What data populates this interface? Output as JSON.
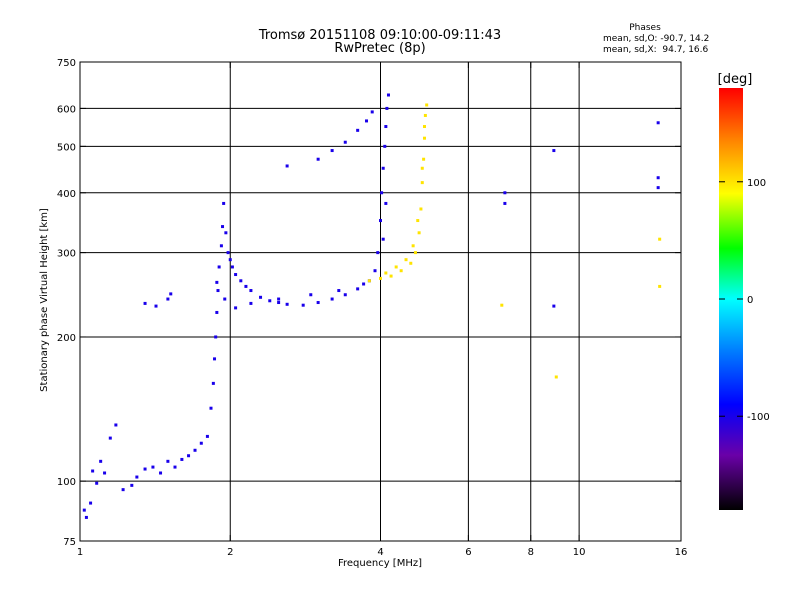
{
  "header": {
    "title_line1": "Tromsø 20151108 09:10:00-09:11:43",
    "title_line2": "RwPretec (8p)"
  },
  "stats": {
    "heading": "Phases",
    "line_o": "mean, sd,O: -90.7, 14.2",
    "line_x": "mean, sd,X:  94.7, 16.6"
  },
  "colorbar": {
    "unit_label": "[deg]",
    "ticks": [
      {
        "value": 100,
        "label": "100"
      },
      {
        "value": 0,
        "label": "0"
      },
      {
        "value": -100,
        "label": "-100"
      }
    ],
    "range": [
      -180,
      180
    ]
  },
  "chart_data": {
    "type": "scatter",
    "xlabel": "Frequency [MHz]",
    "ylabel": "Stationary phase Virtual Height [km]",
    "xscale": "log",
    "yscale": "log",
    "xlim": [
      1,
      16
    ],
    "ylim": [
      75,
      750
    ],
    "xticks": [
      {
        "value": 1,
        "label": "1"
      },
      {
        "value": 2,
        "label": "2"
      },
      {
        "value": 4,
        "label": "4"
      },
      {
        "value": 6,
        "label": "6"
      },
      {
        "value": 8,
        "label": "8"
      },
      {
        "value": 10,
        "label": "10"
      },
      {
        "value": 16,
        "label": "16"
      }
    ],
    "yticks": [
      {
        "value": 75,
        "label": "75"
      },
      {
        "value": 100,
        "label": "100"
      },
      {
        "value": 200,
        "label": "200"
      },
      {
        "value": 300,
        "label": "300"
      },
      {
        "value": 400,
        "label": "400"
      },
      {
        "value": 500,
        "label": "500"
      },
      {
        "value": 600,
        "label": "600"
      },
      {
        "value": 750,
        "label": "750"
      }
    ],
    "xgrid": [
      2,
      4,
      6,
      8,
      10
    ],
    "ygrid": [
      100,
      200,
      300,
      400,
      500,
      600
    ],
    "series": [
      {
        "mode": "O",
        "phase_deg": -100,
        "points": [
          [
            1.02,
            87
          ],
          [
            1.03,
            84
          ],
          [
            1.05,
            90
          ],
          [
            1.06,
            105
          ],
          [
            1.08,
            99
          ],
          [
            1.1,
            110
          ],
          [
            1.12,
            104
          ],
          [
            1.15,
            123
          ],
          [
            1.18,
            131
          ],
          [
            1.22,
            96
          ],
          [
            1.27,
            98
          ],
          [
            1.3,
            102
          ],
          [
            1.35,
            106
          ],
          [
            1.4,
            107
          ],
          [
            1.45,
            104
          ],
          [
            1.5,
            110
          ],
          [
            1.55,
            107
          ],
          [
            1.6,
            111
          ],
          [
            1.65,
            113
          ],
          [
            1.7,
            116
          ],
          [
            1.75,
            120
          ],
          [
            1.8,
            124
          ],
          [
            1.83,
            142
          ],
          [
            1.85,
            160
          ],
          [
            1.86,
            180
          ],
          [
            1.87,
            200
          ],
          [
            1.88,
            225
          ],
          [
            1.89,
            250
          ],
          [
            1.9,
            280
          ],
          [
            1.92,
            310
          ],
          [
            1.93,
            340
          ],
          [
            1.94,
            380
          ],
          [
            1.96,
            330
          ],
          [
            1.98,
            300
          ],
          [
            2.0,
            290
          ],
          [
            2.02,
            280
          ],
          [
            2.05,
            270
          ],
          [
            2.1,
            262
          ],
          [
            2.15,
            255
          ],
          [
            2.2,
            250
          ],
          [
            2.3,
            242
          ],
          [
            2.4,
            238
          ],
          [
            2.5,
            236
          ],
          [
            2.6,
            234
          ],
          [
            2.8,
            233
          ],
          [
            3.0,
            236
          ],
          [
            3.2,
            240
          ],
          [
            3.4,
            245
          ],
          [
            3.6,
            252
          ],
          [
            3.8,
            262
          ],
          [
            3.9,
            275
          ],
          [
            3.95,
            300
          ],
          [
            4.0,
            350
          ],
          [
            4.02,
            400
          ],
          [
            4.05,
            450
          ],
          [
            4.08,
            500
          ],
          [
            4.1,
            550
          ],
          [
            4.12,
            600
          ],
          [
            4.15,
            640
          ],
          [
            1.88,
            260
          ],
          [
            1.95,
            240
          ],
          [
            2.05,
            230
          ],
          [
            2.2,
            235
          ],
          [
            2.5,
            240
          ],
          [
            2.9,
            245
          ],
          [
            3.3,
            250
          ],
          [
            3.7,
            258
          ],
          [
            4.05,
            320
          ],
          [
            4.1,
            380
          ],
          [
            1.35,
            235
          ],
          [
            1.42,
            232
          ],
          [
            1.5,
            240
          ],
          [
            1.52,
            246
          ],
          [
            2.6,
            455
          ],
          [
            3.0,
            470
          ],
          [
            3.2,
            490
          ],
          [
            3.4,
            510
          ],
          [
            3.6,
            540
          ],
          [
            3.75,
            565
          ],
          [
            3.85,
            590
          ],
          [
            7.1,
            400
          ],
          [
            7.1,
            380
          ],
          [
            8.9,
            490
          ],
          [
            8.9,
            232
          ],
          [
            14.4,
            560
          ],
          [
            14.4,
            430
          ],
          [
            14.4,
            410
          ]
        ]
      },
      {
        "mode": "X",
        "phase_deg": 100,
        "points": [
          [
            3.8,
            262
          ],
          [
            4.0,
            265
          ],
          [
            4.2,
            268
          ],
          [
            4.4,
            275
          ],
          [
            4.6,
            285
          ],
          [
            4.7,
            300
          ],
          [
            4.78,
            330
          ],
          [
            4.82,
            370
          ],
          [
            4.85,
            420
          ],
          [
            4.88,
            470
          ],
          [
            4.9,
            520
          ],
          [
            4.92,
            580
          ],
          [
            4.95,
            610
          ],
          [
            4.1,
            272
          ],
          [
            4.3,
            280
          ],
          [
            4.5,
            290
          ],
          [
            4.65,
            310
          ],
          [
            4.75,
            350
          ],
          [
            4.85,
            450
          ],
          [
            4.9,
            550
          ],
          [
            7.0,
            233
          ],
          [
            9.0,
            165
          ],
          [
            14.5,
            320
          ],
          [
            14.5,
            255
          ]
        ]
      }
    ]
  }
}
